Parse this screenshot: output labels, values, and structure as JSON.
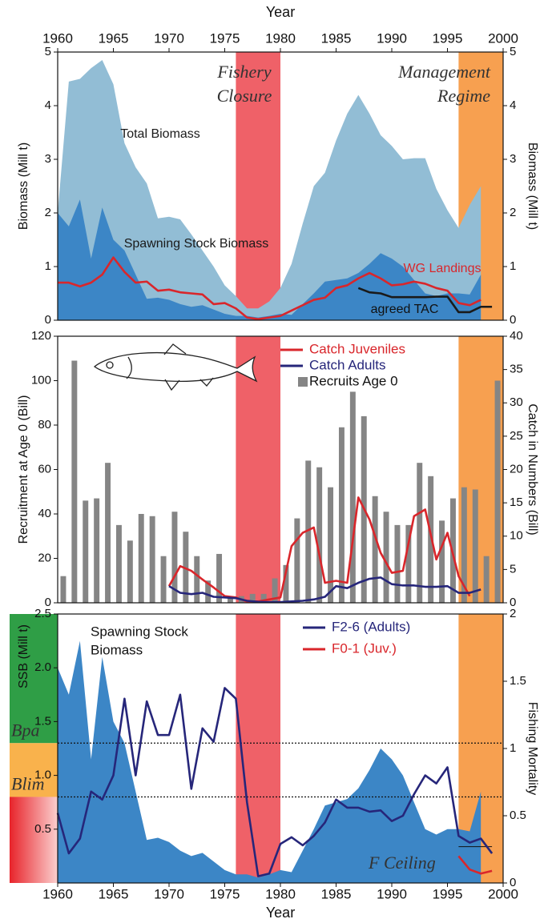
{
  "chart_data": [
    {
      "type": "area-line",
      "xlabel": "Year",
      "ylabel": "Biomass (Mill t)",
      "y2label": "Biomass (Mill t)",
      "xlim": [
        1960,
        2000
      ],
      "xticks": [
        1960,
        1965,
        1970,
        1975,
        1980,
        1985,
        1990,
        1995,
        2000
      ],
      "ylim": [
        0,
        5
      ],
      "yticks": [
        0,
        1,
        2,
        3,
        4,
        5
      ],
      "y2lim": [
        0,
        5
      ],
      "y2ticks": [
        0,
        1,
        2,
        3,
        4,
        5
      ],
      "bands": [
        {
          "x": [
            1976,
            1980
          ],
          "color": "#ef6168"
        },
        {
          "x": [
            1996,
            2000
          ],
          "color": "#f7a050"
        }
      ],
      "annotations": [
        "Fishery",
        "Closure",
        "Management",
        "Regime"
      ],
      "series": [
        {
          "name": "Total Biomass",
          "kind": "area",
          "color": "#92bdd5",
          "x": [
            1960,
            1961,
            1962,
            1963,
            1964,
            1965,
            1966,
            1967,
            1968,
            1969,
            1970,
            1971,
            1972,
            1973,
            1974,
            1975,
            1976,
            1977,
            1978,
            1979,
            1980,
            1981,
            1982,
            1983,
            1984,
            1985,
            1986,
            1987,
            1988,
            1989,
            1990,
            1991,
            1992,
            1993,
            1994,
            1995,
            1996,
            1997,
            1998
          ],
          "values": [
            2.0,
            4.45,
            4.5,
            4.7,
            4.85,
            4.4,
            3.3,
            2.85,
            2.55,
            1.9,
            1.93,
            1.88,
            1.6,
            1.3,
            1.0,
            0.65,
            0.45,
            0.22,
            0.22,
            0.35,
            0.6,
            1.05,
            1.8,
            2.5,
            2.75,
            3.35,
            3.85,
            4.2,
            3.85,
            3.45,
            3.25,
            3.0,
            3.02,
            3.02,
            2.45,
            2.05,
            1.72,
            2.15,
            2.5
          ]
        },
        {
          "name": "Spawning Stock Biomass",
          "kind": "area",
          "color": "#3c86c6",
          "x": [
            1960,
            1961,
            1962,
            1963,
            1964,
            1965,
            1966,
            1967,
            1968,
            1969,
            1970,
            1971,
            1972,
            1973,
            1974,
            1975,
            1976,
            1977,
            1978,
            1979,
            1980,
            1981,
            1982,
            1983,
            1984,
            1985,
            1986,
            1987,
            1988,
            1989,
            1990,
            1991,
            1992,
            1993,
            1994,
            1995,
            1996,
            1997,
            1998
          ],
          "values": [
            2.0,
            1.75,
            2.25,
            1.15,
            2.1,
            1.5,
            1.3,
            0.85,
            0.4,
            0.42,
            0.38,
            0.3,
            0.25,
            0.28,
            0.2,
            0.12,
            0.08,
            0.08,
            0.05,
            0.08,
            0.12,
            0.1,
            0.3,
            0.5,
            0.72,
            0.75,
            0.78,
            0.88,
            1.05,
            1.25,
            1.15,
            1.0,
            0.75,
            0.5,
            0.45,
            0.5,
            0.5,
            0.48,
            0.85
          ]
        },
        {
          "name": "WG Landings",
          "kind": "line",
          "color": "#d9262b",
          "x": [
            1960,
            1961,
            1962,
            1963,
            1964,
            1965,
            1966,
            1967,
            1968,
            1969,
            1970,
            1971,
            1972,
            1973,
            1974,
            1975,
            1976,
            1977,
            1978,
            1979,
            1980,
            1981,
            1982,
            1983,
            1984,
            1985,
            1986,
            1987,
            1988,
            1989,
            1990,
            1991,
            1992,
            1993,
            1994,
            1995,
            1996,
            1997,
            1998
          ],
          "values": [
            0.7,
            0.7,
            0.63,
            0.7,
            0.85,
            1.17,
            0.9,
            0.7,
            0.72,
            0.55,
            0.57,
            0.52,
            0.5,
            0.48,
            0.3,
            0.32,
            0.22,
            0.05,
            0.02,
            0.05,
            0.08,
            0.18,
            0.28,
            0.38,
            0.42,
            0.6,
            0.65,
            0.78,
            0.88,
            0.78,
            0.65,
            0.67,
            0.72,
            0.68,
            0.6,
            0.55,
            0.32,
            0.28,
            0.38
          ]
        },
        {
          "name": "agreed TAC",
          "kind": "line",
          "color": "#1a1a1a",
          "x": [
            1987,
            1988,
            1989,
            1990,
            1991,
            1992,
            1993,
            1994,
            1995,
            1996,
            1997,
            1998,
            1999
          ],
          "values": [
            0.6,
            0.52,
            0.5,
            0.43,
            0.43,
            0.43,
            0.43,
            0.44,
            0.44,
            0.15,
            0.15,
            0.25,
            0.25
          ]
        }
      ]
    },
    {
      "type": "bar-line",
      "ylabel": "Recruitment at Age 0 (Bill)",
      "y2label": "Catch in Numbers (Bill)",
      "xlim": [
        1960,
        2000
      ],
      "ylim": [
        0,
        120
      ],
      "yticks": [
        0,
        20,
        40,
        60,
        80,
        100,
        120
      ],
      "y2lim": [
        0,
        40
      ],
      "y2ticks": [
        0,
        5,
        10,
        15,
        20,
        25,
        30,
        35,
        40
      ],
      "bands": [
        {
          "x": [
            1976,
            1980
          ],
          "color": "#ef6168"
        },
        {
          "x": [
            1996,
            2000
          ],
          "color": "#f7a050"
        }
      ],
      "series": [
        {
          "name": "Recruits Age 0",
          "kind": "bar",
          "color": "#858585",
          "x": [
            1960,
            1961,
            1962,
            1963,
            1964,
            1965,
            1966,
            1967,
            1968,
            1969,
            1970,
            1971,
            1972,
            1973,
            1974,
            1975,
            1976,
            1977,
            1978,
            1979,
            1980,
            1981,
            1982,
            1983,
            1984,
            1985,
            1986,
            1987,
            1988,
            1989,
            1990,
            1991,
            1992,
            1993,
            1994,
            1995,
            1996,
            1997,
            1998,
            1999
          ],
          "values": [
            12,
            109,
            46,
            47,
            63,
            35,
            28,
            40,
            39,
            21,
            41,
            32,
            21,
            10,
            22,
            3,
            3,
            4,
            4,
            11,
            17,
            38,
            64,
            61,
            52,
            79,
            95,
            84,
            48,
            41,
            35,
            35,
            63,
            57,
            37,
            47,
            52,
            51,
            21,
            100
          ]
        },
        {
          "name": "Catch Juveniles",
          "kind": "line",
          "axis": "y2",
          "color": "#d9262b",
          "x": [
            1970,
            1971,
            1972,
            1973,
            1974,
            1975,
            1976,
            1977,
            1978,
            1979,
            1980,
            1981,
            1982,
            1983,
            1984,
            1985,
            1986,
            1987,
            1988,
            1989,
            1990,
            1991,
            1992,
            1993,
            1994,
            1995,
            1996,
            1997
          ],
          "values": [
            2.5,
            5.5,
            4.8,
            3.5,
            2.3,
            1.0,
            0.8,
            0.2,
            0.2,
            0.5,
            0.8,
            8.5,
            10.5,
            11.3,
            3.0,
            3.3,
            3.0,
            15.8,
            12.5,
            7.5,
            4.5,
            4.8,
            13.0,
            14.0,
            6.5,
            10.5,
            4.0,
            1.0
          ]
        },
        {
          "name": "Catch Adults",
          "kind": "line",
          "axis": "y2",
          "color": "#26267a",
          "x": [
            1970,
            1971,
            1972,
            1973,
            1974,
            1975,
            1976,
            1977,
            1978,
            1979,
            1980,
            1981,
            1982,
            1983,
            1984,
            1985,
            1986,
            1987,
            1988,
            1989,
            1990,
            1991,
            1992,
            1993,
            1994,
            1995,
            1996,
            1997,
            1998
          ],
          "values": [
            2.5,
            1.5,
            1.3,
            1.5,
            0.9,
            0.8,
            0.7,
            0.3,
            0.15,
            0.1,
            0.1,
            0.2,
            0.3,
            0.5,
            0.9,
            2.5,
            2.2,
            3.0,
            3.6,
            3.8,
            2.8,
            2.6,
            2.6,
            2.4,
            2.4,
            2.5,
            1.5,
            1.5,
            2.0
          ]
        }
      ]
    },
    {
      "type": "area-line",
      "xlabel": "Year",
      "ylabel": "SSB (Mill t)",
      "y2label": "Fishing Mortality",
      "xlim": [
        1960,
        2000
      ],
      "xticks": [
        1960,
        1965,
        1970,
        1975,
        1980,
        1985,
        1990,
        1995,
        2000
      ],
      "ylim": [
        0,
        2.5
      ],
      "yticks": [
        0.5,
        {
          "value": 1,
          "label": "1.0"
        },
        1.5,
        {
          "value": 2,
          "label": "2.0"
        },
        2.5
      ],
      "y2lim": [
        0,
        2
      ],
      "y2ticks": [
        0,
        0.5,
        1,
        1.5,
        2
      ],
      "bands": [
        {
          "x": [
            1976,
            1980
          ],
          "color": "#ef6168"
        },
        {
          "x": [
            1996,
            2000
          ],
          "color": "#f7a050"
        }
      ],
      "zone_colors": [
        "#2f9e46",
        "#f9b24c",
        "#e8232a"
      ],
      "reference_lines": [
        {
          "label": "Bpa",
          "value": 1.3
        },
        {
          "label": "Blim",
          "value": 0.8
        }
      ],
      "ceiling": {
        "label": "F Ceiling",
        "value": 0.27,
        "x": [
          1996,
          1999
        ]
      },
      "annotations": [
        "Spawning Stock",
        "Biomass"
      ],
      "series": [
        {
          "kind": "area",
          "color": "#3c86c6",
          "x": [
            1960,
            1961,
            1962,
            1963,
            1964,
            1965,
            1966,
            1967,
            1968,
            1969,
            1970,
            1971,
            1972,
            1973,
            1974,
            1975,
            1976,
            1977,
            1978,
            1979,
            1980,
            1981,
            1982,
            1983,
            1984,
            1985,
            1986,
            1987,
            1988,
            1989,
            1990,
            1991,
            1992,
            1993,
            1994,
            1995,
            1996,
            1997,
            1998
          ],
          "values": [
            2.0,
            1.75,
            2.25,
            1.15,
            2.1,
            1.5,
            1.3,
            0.85,
            0.4,
            0.42,
            0.38,
            0.3,
            0.25,
            0.28,
            0.2,
            0.12,
            0.08,
            0.08,
            0.05,
            0.08,
            0.12,
            0.1,
            0.3,
            0.5,
            0.72,
            0.75,
            0.78,
            0.88,
            1.05,
            1.25,
            1.15,
            1.0,
            0.75,
            0.5,
            0.45,
            0.5,
            0.5,
            0.48,
            0.85
          ]
        },
        {
          "name": "F2-6 (Adults)",
          "kind": "line",
          "axis": "y2",
          "color": "#26267a",
          "x": [
            1960,
            1961,
            1962,
            1963,
            1964,
            1965,
            1966,
            1967,
            1968,
            1969,
            1970,
            1971,
            1972,
            1973,
            1974,
            1975,
            1976,
            1977,
            1978,
            1979,
            1980,
            1981,
            1982,
            1983,
            1984,
            1985,
            1986,
            1987,
            1988,
            1989,
            1990,
            1991,
            1992,
            1993,
            1994,
            1995,
            1996,
            1997,
            1998,
            1999
          ],
          "values": [
            0.52,
            0.22,
            0.33,
            0.68,
            0.62,
            0.8,
            1.37,
            0.8,
            1.35,
            1.1,
            1.1,
            1.4,
            0.7,
            1.15,
            1.05,
            1.45,
            1.37,
            0.6,
            0.05,
            0.07,
            0.29,
            0.34,
            0.28,
            0.35,
            0.45,
            0.62,
            0.56,
            0.56,
            0.53,
            0.54,
            0.46,
            0.5,
            0.66,
            0.8,
            0.74,
            0.86,
            0.35,
            0.3,
            0.33,
            0.22
          ]
        },
        {
          "name": "F0-1 (Juv.)",
          "kind": "line",
          "axis": "y2",
          "color": "#d9262b",
          "x": [
            1996,
            1997,
            1998,
            1999
          ],
          "values": [
            0.2,
            0.1,
            0.07,
            0.09
          ]
        }
      ]
    }
  ]
}
